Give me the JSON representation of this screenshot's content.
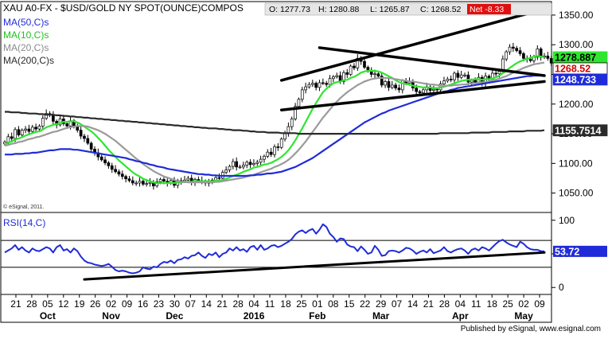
{
  "header": {
    "symbol": "XAU A0-FX - $USD/GOLD NY SPOT(OUNCE)COMPOS",
    "open": "O: 1277.73",
    "high": "H: 1280.88",
    "low": "L: 1265.87",
    "close": "C: 1268.52",
    "net": "Net -8.33"
  },
  "legend": [
    {
      "label": "MA(50,C)s",
      "color": "#1f2bd8"
    },
    {
      "label": "MA(10,C)s",
      "color": "#2ee62e"
    },
    {
      "label": "MA(20,C)s",
      "color": "#9a9a9a"
    },
    {
      "label": "MA(200,C)s",
      "color": "#2a2a2a"
    }
  ],
  "rsi_label": "RSI(14,C)",
  "copyright": "© eSignal, 2011.",
  "footer": "Published by eSignal, www.esignal.com",
  "price_tags": [
    {
      "text": "1278.887",
      "value": 1278.887,
      "bg": "#2ee62e",
      "fg": "#000000"
    },
    {
      "text": "1268.52",
      "value": 1268.52,
      "bg": "#ffffff",
      "fg": "#d40000"
    },
    {
      "text": "1248.733",
      "value": 1248.733,
      "bg": "#1f2bd8",
      "fg": "#ffffff"
    },
    {
      "text": "1155.7514",
      "value": 1155.7514,
      "bg": "#2a2a2a",
      "fg": "#ffffff"
    }
  ],
  "rsi_tag": {
    "text": "53.72",
    "value": 53.72,
    "bg": "#1f2bd8",
    "fg": "#ffffff"
  },
  "chart_data": [
    {
      "type": "candlestick",
      "title": "XAU A0-FX - $USD/GOLD NY SPOT(OUNCE)COMPOS",
      "ylim": [
        1020,
        1370
      ],
      "yticks": [
        1050,
        1100,
        1150,
        1200,
        1250,
        1300,
        1350
      ],
      "ytick_labels": [
        "1050.00",
        "1100.00",
        "1150.00",
        "1200.00",
        "1250.00",
        "1300.00",
        "1350.00"
      ],
      "trading_days": 157,
      "close": [
        1136,
        1145,
        1142,
        1157,
        1148,
        1156,
        1158,
        1154,
        1161,
        1158,
        1163,
        1176,
        1184,
        1182,
        1171,
        1165,
        1175,
        1167,
        1163,
        1172,
        1162,
        1156,
        1146,
        1142,
        1134,
        1124,
        1118,
        1111,
        1106,
        1101,
        1096,
        1090,
        1086,
        1082,
        1078,
        1074,
        1071,
        1067,
        1067,
        1070,
        1065,
        1066,
        1068,
        1062,
        1069,
        1073,
        1070,
        1067,
        1071,
        1063,
        1071,
        1070,
        1072,
        1075,
        1068,
        1073,
        1071,
        1069,
        1067,
        1068,
        1072,
        1076,
        1075,
        1085,
        1089,
        1095,
        1103,
        1094,
        1094,
        1097,
        1102,
        1098,
        1100,
        1102,
        1107,
        1112,
        1119,
        1115,
        1128,
        1127,
        1141,
        1150,
        1162,
        1175,
        1196,
        1208,
        1224,
        1229,
        1233,
        1235,
        1228,
        1236,
        1235,
        1233,
        1243,
        1246,
        1248,
        1238,
        1253,
        1250,
        1264,
        1261,
        1277,
        1272,
        1262,
        1257,
        1250,
        1251,
        1247,
        1232,
        1238,
        1228,
        1232,
        1227,
        1224,
        1239,
        1235,
        1238,
        1227,
        1221,
        1219,
        1224,
        1229,
        1223,
        1225,
        1224,
        1234,
        1239,
        1242,
        1241,
        1252,
        1245,
        1249,
        1249,
        1237,
        1240,
        1237,
        1245,
        1235,
        1247,
        1242,
        1252,
        1251,
        1255,
        1276,
        1288,
        1296,
        1294,
        1290,
        1285,
        1277,
        1276,
        1273,
        1279,
        1293,
        1279,
        1281,
        1277,
        1269
      ],
      "series": [
        {
          "name": "MA(10,C)s",
          "color": "#2ee62e",
          "values": [
            1132,
            1135,
            1137,
            1140,
            1142,
            1144,
            1147,
            1149,
            1151,
            1153,
            1154,
            1157,
            1161,
            1163,
            1165,
            1166,
            1168,
            1170,
            1170,
            1171,
            1171,
            1169,
            1166,
            1162,
            1158,
            1154,
            1149,
            1143,
            1137,
            1130,
            1123,
            1117,
            1111,
            1105,
            1100,
            1095,
            1090,
            1085,
            1081,
            1078,
            1074,
            1072,
            1070,
            1068,
            1067,
            1067,
            1067,
            1067,
            1067,
            1067,
            1068,
            1068,
            1069,
            1069,
            1069,
            1070,
            1070,
            1070,
            1070,
            1070,
            1070,
            1071,
            1071,
            1072,
            1074,
            1076,
            1079,
            1081,
            1083,
            1086,
            1088,
            1090,
            1093,
            1094,
            1096,
            1098,
            1099,
            1101,
            1104,
            1107,
            1111,
            1116,
            1122,
            1130,
            1139,
            1149,
            1159,
            1170,
            1181,
            1192,
            1202,
            1211,
            1220,
            1226,
            1231,
            1235,
            1237,
            1238,
            1240,
            1241,
            1244,
            1246,
            1249,
            1253,
            1255,
            1256,
            1256,
            1256,
            1255,
            1253,
            1250,
            1247,
            1244,
            1240,
            1237,
            1235,
            1234,
            1233,
            1231,
            1230,
            1229,
            1228,
            1228,
            1228,
            1227,
            1227,
            1228,
            1229,
            1231,
            1233,
            1235,
            1237,
            1239,
            1240,
            1241,
            1241,
            1242,
            1242,
            1241,
            1242,
            1242,
            1243,
            1245,
            1248,
            1252,
            1256,
            1261,
            1265,
            1269,
            1272,
            1274,
            1276,
            1278,
            1280,
            1281,
            1280,
            1279
          ]
        },
        {
          "name": "MA(20,C)s",
          "color": "#9a9a9a",
          "values": [
            1130,
            1131,
            1133,
            1134,
            1136,
            1137,
            1139,
            1141,
            1142,
            1144,
            1145,
            1147,
            1149,
            1151,
            1153,
            1154,
            1156,
            1158,
            1160,
            1161,
            1162,
            1163,
            1163,
            1163,
            1162,
            1160,
            1158,
            1156,
            1153,
            1150,
            1146,
            1142,
            1138,
            1133,
            1128,
            1123,
            1118,
            1113,
            1108,
            1104,
            1099,
            1095,
            1091,
            1087,
            1084,
            1081,
            1078,
            1076,
            1074,
            1072,
            1070,
            1069,
            1069,
            1068,
            1068,
            1068,
            1068,
            1068,
            1068,
            1068,
            1068,
            1069,
            1069,
            1070,
            1071,
            1072,
            1073,
            1074,
            1075,
            1076,
            1078,
            1079,
            1081,
            1083,
            1085,
            1087,
            1089,
            1091,
            1094,
            1096,
            1099,
            1102,
            1106,
            1111,
            1117,
            1123,
            1130,
            1137,
            1145,
            1153,
            1161,
            1169,
            1177,
            1184,
            1191,
            1198,
            1204,
            1210,
            1215,
            1220,
            1224,
            1228,
            1232,
            1235,
            1238,
            1240,
            1242,
            1243,
            1244,
            1244,
            1244,
            1244,
            1243,
            1242,
            1241,
            1240,
            1239,
            1238,
            1238,
            1237,
            1236,
            1235,
            1234,
            1233,
            1233,
            1232,
            1231,
            1231,
            1231,
            1231,
            1232,
            1232,
            1233,
            1233,
            1234,
            1235,
            1235,
            1236,
            1237,
            1237,
            1238,
            1240,
            1241,
            1243,
            1245,
            1247,
            1250,
            1253,
            1256,
            1258,
            1261,
            1263,
            1265,
            1267,
            1268,
            1269,
            1270
          ]
        },
        {
          "name": "MA(50,C)s",
          "color": "#1f2bd8",
          "values": [
            1115,
            1115,
            1115,
            1116,
            1116,
            1116,
            1117,
            1117,
            1118,
            1118,
            1119,
            1120,
            1121,
            1122,
            1122,
            1123,
            1124,
            1124,
            1124,
            1124,
            1123,
            1123,
            1122,
            1121,
            1120,
            1119,
            1118,
            1117,
            1116,
            1115,
            1114,
            1113,
            1112,
            1111,
            1110,
            1109,
            1107,
            1106,
            1104,
            1103,
            1101,
            1100,
            1098,
            1097,
            1095,
            1094,
            1093,
            1091,
            1090,
            1089,
            1088,
            1087,
            1086,
            1085,
            1084,
            1083,
            1082,
            1082,
            1081,
            1081,
            1080,
            1080,
            1079,
            1079,
            1079,
            1079,
            1079,
            1079,
            1079,
            1079,
            1079,
            1080,
            1080,
            1081,
            1081,
            1082,
            1083,
            1083,
            1084,
            1085,
            1086,
            1088,
            1090,
            1092,
            1094,
            1097,
            1100,
            1103,
            1106,
            1109,
            1113,
            1117,
            1121,
            1125,
            1129,
            1133,
            1137,
            1141,
            1145,
            1149,
            1153,
            1157,
            1161,
            1165,
            1169,
            1172,
            1175,
            1178,
            1181,
            1184,
            1186,
            1189,
            1191,
            1193,
            1195,
            1197,
            1199,
            1201,
            1203,
            1205,
            1207,
            1209,
            1211,
            1213,
            1215,
            1217,
            1219,
            1221,
            1222,
            1224,
            1225,
            1227,
            1228,
            1229,
            1230,
            1231,
            1232,
            1233,
            1234,
            1235,
            1236,
            1237,
            1238,
            1239,
            1240,
            1241,
            1242,
            1243,
            1244,
            1245,
            1246,
            1247,
            1247,
            1248,
            1248,
            1248,
            1248
          ]
        },
        {
          "name": "MA(200,C)s",
          "color": "#2a2a2a",
          "values": [
            1187,
            1187,
            1186,
            1186,
            1186,
            1185,
            1185,
            1184,
            1184,
            1184,
            1183,
            1183,
            1182,
            1182,
            1182,
            1181,
            1181,
            1180,
            1180,
            1179,
            1179,
            1178,
            1178,
            1177,
            1177,
            1176,
            1176,
            1175,
            1175,
            1174,
            1174,
            1173,
            1173,
            1172,
            1172,
            1171,
            1171,
            1170,
            1170,
            1169,
            1169,
            1168,
            1168,
            1167,
            1167,
            1166,
            1166,
            1165,
            1165,
            1164,
            1164,
            1163,
            1163,
            1162,
            1162,
            1161,
            1161,
            1160,
            1160,
            1159,
            1159,
            1159,
            1158,
            1158,
            1157,
            1157,
            1156,
            1156,
            1156,
            1155,
            1155,
            1154,
            1154,
            1153,
            1153,
            1153,
            1152,
            1152,
            1152,
            1152,
            1151,
            1151,
            1151,
            1151,
            1151,
            1150,
            1150,
            1150,
            1150,
            1150,
            1150,
            1150,
            1150,
            1150,
            1150,
            1150,
            1150,
            1150,
            1150,
            1150,
            1150,
            1150,
            1150,
            1150,
            1150,
            1150,
            1150,
            1150,
            1150,
            1150,
            1150,
            1150,
            1150,
            1150,
            1150,
            1150,
            1150,
            1150,
            1150,
            1150,
            1150,
            1150,
            1150,
            1150,
            1150,
            1150,
            1151,
            1151,
            1151,
            1151,
            1151,
            1151,
            1151,
            1151,
            1151,
            1152,
            1152,
            1152,
            1152,
            1152,
            1152,
            1153,
            1153,
            1153,
            1153,
            1153,
            1154,
            1154,
            1154,
            1154,
            1154,
            1155,
            1155,
            1155,
            1155,
            1155,
            1156
          ]
        }
      ],
      "trendlines": [
        {
          "from": [
            80,
            1240
          ],
          "to": [
            156,
            1360
          ]
        },
        {
          "from": [
            91,
            1295
          ],
          "to": [
            156,
            1248
          ]
        },
        {
          "from": [
            80,
            1190
          ],
          "to": [
            156,
            1238
          ]
        }
      ]
    },
    {
      "type": "line",
      "title": "RSI(14,C)",
      "ylim": [
        -8,
        108
      ],
      "yticks": [
        0,
        50,
        100
      ],
      "ytick_labels": [
        "0",
        "50",
        "100"
      ],
      "hlines": [
        30,
        70
      ],
      "series": [
        {
          "name": "RSI(14,C)",
          "color": "#1f2bd8",
          "values": [
            52,
            55,
            58,
            63,
            56,
            60,
            55,
            52,
            58,
            55,
            54,
            57,
            60,
            58,
            52,
            60,
            63,
            55,
            57,
            52,
            58,
            54,
            46,
            40,
            37,
            36,
            34,
            33,
            32,
            33,
            35,
            31,
            26,
            24,
            25,
            24,
            22,
            21,
            22,
            24,
            30,
            28,
            27,
            31,
            30,
            35,
            38,
            37,
            40,
            36,
            41,
            42,
            45,
            43,
            47,
            48,
            52,
            47,
            44,
            50,
            48,
            52,
            45,
            50,
            52,
            58,
            55,
            60,
            55,
            57,
            53,
            60,
            62,
            56,
            63,
            56,
            58,
            62,
            63,
            60,
            62,
            65,
            68,
            72,
            79,
            83,
            85,
            81,
            85,
            87,
            80,
            86,
            94,
            90,
            80,
            75,
            68,
            73,
            72,
            64,
            61,
            60,
            54,
            61,
            56,
            50,
            52,
            62,
            56,
            47,
            48,
            54,
            55,
            54,
            52,
            55,
            59,
            58,
            55,
            50,
            53,
            55,
            52,
            57,
            51,
            53,
            55,
            60,
            54,
            52,
            55,
            57,
            58,
            55,
            50,
            56,
            58,
            55,
            60,
            58,
            55,
            60,
            65,
            69,
            71,
            67,
            64,
            62,
            60,
            68,
            65,
            60,
            57,
            56,
            56,
            54,
            53.72
          ]
        }
      ],
      "trendlines": [
        {
          "from": [
            23,
            12
          ],
          "to": [
            156,
            52
          ]
        }
      ]
    }
  ],
  "x_axis": {
    "days": [
      "21",
      "28",
      "05",
      "12",
      "19",
      "26",
      "02",
      "09",
      "16",
      "23",
      "30",
      "07",
      "14",
      "21",
      "28",
      "04",
      "11",
      "18",
      "25",
      "01",
      "08",
      "15",
      "22",
      "29",
      "07",
      "14",
      "21",
      "28",
      "04",
      "11",
      "18",
      "25",
      "02",
      "09"
    ],
    "months": [
      "Oct",
      "Nov",
      "Dec",
      "2016",
      "Feb",
      "Mar",
      "Apr",
      "May"
    ],
    "month_day_index": [
      2,
      6,
      10,
      15,
      19,
      23,
      28,
      32
    ]
  }
}
